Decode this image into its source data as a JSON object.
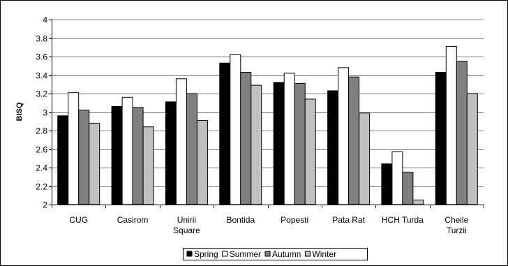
{
  "chart_data": {
    "type": "bar",
    "ylabel": "BISQ",
    "xlabel": "",
    "ylim": [
      2,
      4
    ],
    "yticks": [
      "2",
      "2.2",
      "2.4",
      "2.6",
      "2.8",
      "3",
      "3.2",
      "3.4",
      "3.6",
      "3.8",
      "4"
    ],
    "grid": true,
    "legend_position": "bottom",
    "categories": [
      [
        "CUG"
      ],
      [
        "Casirom"
      ],
      [
        "Unirii",
        "Square"
      ],
      [
        "Bontida"
      ],
      [
        "Popesti"
      ],
      [
        "Pata Rat"
      ],
      [
        "HCH Turda"
      ],
      [
        "Cheile",
        "Turzii"
      ]
    ],
    "series": [
      {
        "name": "Spring",
        "color": "#000000",
        "values": [
          2.96,
          3.06,
          3.11,
          3.53,
          3.32,
          3.23,
          2.44,
          3.43
        ]
      },
      {
        "name": "Summer",
        "color": "#ffffff",
        "values": [
          3.21,
          3.16,
          3.36,
          3.62,
          3.42,
          3.48,
          2.57,
          3.71
        ]
      },
      {
        "name": "Autumn",
        "color": "#808080",
        "values": [
          3.02,
          3.05,
          3.2,
          3.43,
          3.31,
          3.38,
          2.35,
          3.55
        ]
      },
      {
        "name": "Winter",
        "color": "#c0c0c0",
        "values": [
          2.88,
          2.84,
          2.91,
          3.29,
          3.14,
          2.99,
          2.05,
          3.2
        ]
      }
    ]
  }
}
